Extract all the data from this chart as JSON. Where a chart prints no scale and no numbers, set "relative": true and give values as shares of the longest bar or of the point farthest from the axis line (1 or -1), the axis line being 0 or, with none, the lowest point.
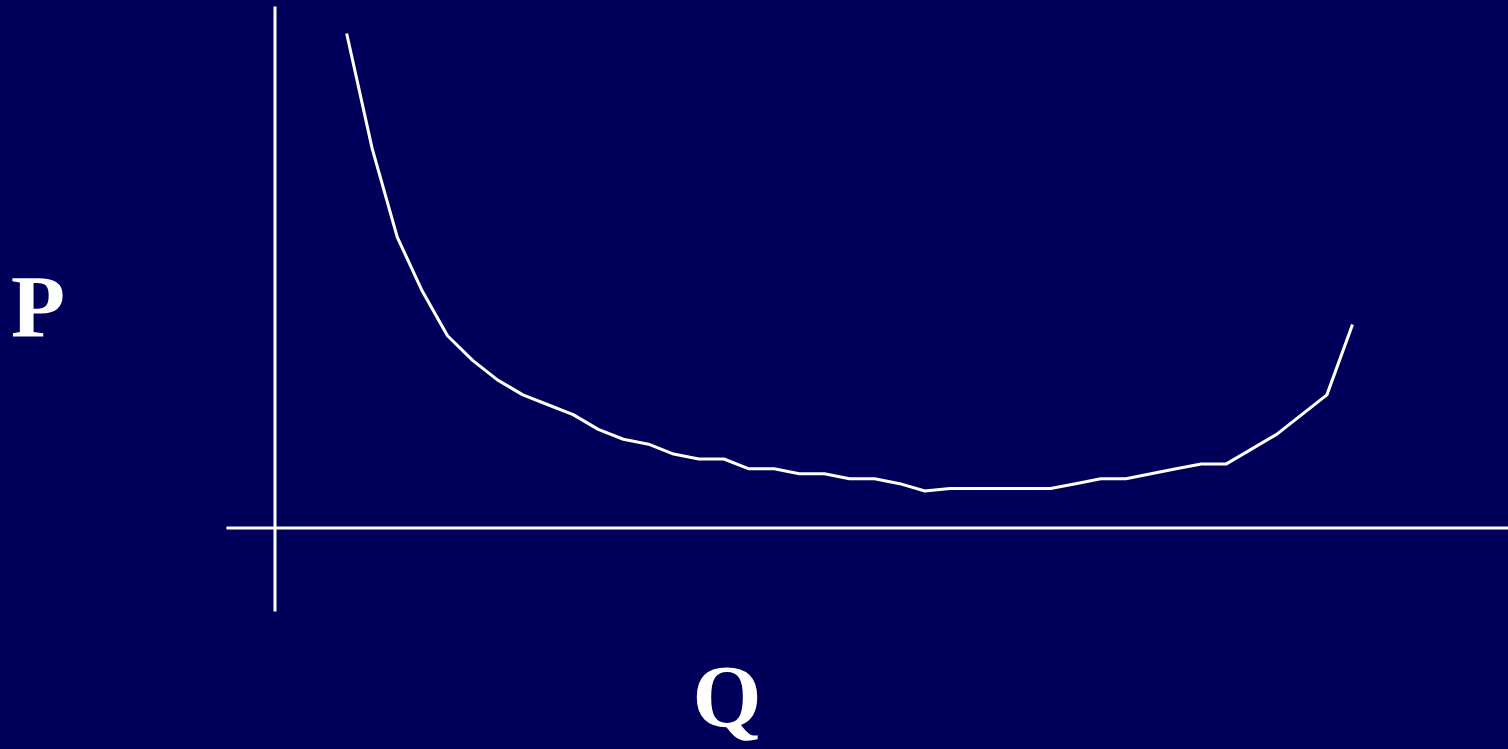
{
  "chart_data": {
    "type": "line",
    "relative": true,
    "xlabel": "Q",
    "ylabel": "P",
    "categories": [
      null,
      null,
      null,
      null,
      null,
      null,
      null,
      null,
      null,
      null,
      null,
      null,
      null,
      null,
      null,
      null,
      null,
      null,
      null,
      null,
      null,
      null,
      null,
      null,
      null,
      null,
      null,
      null,
      null,
      null,
      null,
      null,
      null,
      null,
      null,
      null,
      null,
      null,
      null,
      null,
      null
    ],
    "series": [
      {
        "color": "#ffffff",
        "values": [
          1.0,
          0.77,
          0.59,
          0.48,
          0.39,
          0.34,
          0.3,
          0.27,
          0.25,
          0.23,
          0.2,
          0.18,
          0.17,
          0.15,
          0.14,
          0.14,
          0.12,
          0.12,
          0.11,
          0.11,
          0.1,
          0.1,
          0.09,
          0.075,
          0.08,
          0.08,
          0.08,
          0.08,
          0.08,
          0.09,
          0.1,
          0.1,
          0.11,
          0.12,
          0.13,
          0.13,
          0.16,
          0.19,
          0.23,
          0.27,
          0.41
        ]
      }
    ],
    "grid": false,
    "marker": "none",
    "line_style": "solid"
  }
}
